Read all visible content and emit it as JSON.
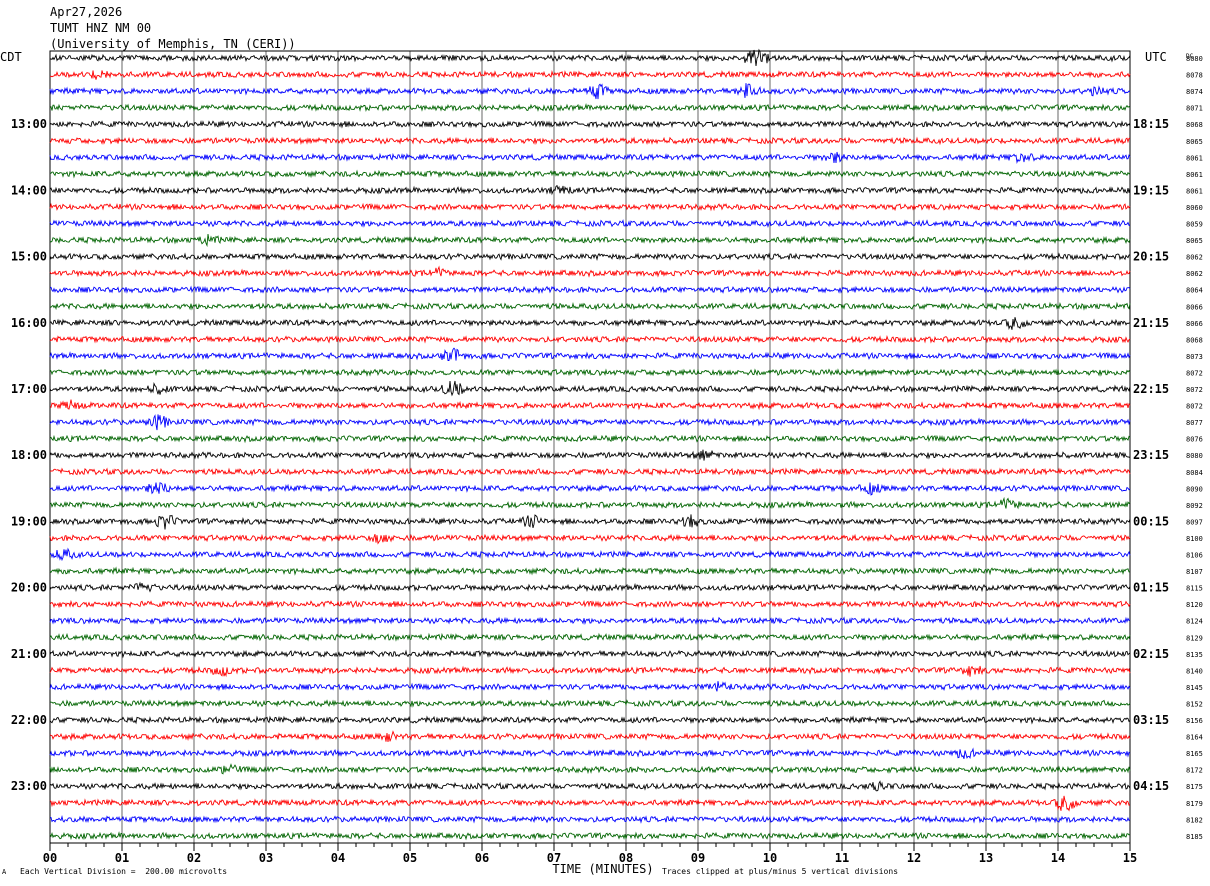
{
  "header": {
    "date": "Apr27,2026",
    "station": "TUMT HNZ NM 00",
    "network": "(University of Memphis, TN (CERI))",
    "left_zone": "CDT",
    "right_zone": "UTC",
    "corner_mark": "DC"
  },
  "footer": {
    "scale_note": "Each Vertical Division =  200.00 microvolts",
    "clip_note": "Traces clipped at plus/minus 5 vertical divisions",
    "corner_glyph": "A"
  },
  "chart_data": {
    "type": "line",
    "title": "TUMT HNZ NM 00",
    "xlabel": "TIME (MINUTES)",
    "xlim": [
      0,
      15
    ],
    "x_ticks": [
      "00",
      "01",
      "02",
      "03",
      "04",
      "05",
      "06",
      "07",
      "08",
      "09",
      "10",
      "11",
      "12",
      "13",
      "14",
      "15"
    ],
    "trace_count": 48,
    "trace_colors": [
      "#000000",
      "#ff0000",
      "#0000ff",
      "#006400"
    ],
    "left_time_labels": [
      {
        "trace": 4,
        "label": "13:00"
      },
      {
        "trace": 8,
        "label": "14:00"
      },
      {
        "trace": 12,
        "label": "15:00"
      },
      {
        "trace": 16,
        "label": "16:00"
      },
      {
        "trace": 20,
        "label": "17:00"
      },
      {
        "trace": 24,
        "label": "18:00"
      },
      {
        "trace": 28,
        "label": "19:00"
      },
      {
        "trace": 32,
        "label": "20:00"
      },
      {
        "trace": 36,
        "label": "21:00"
      },
      {
        "trace": 40,
        "label": "22:00"
      },
      {
        "trace": 44,
        "label": "23:00"
      }
    ],
    "right_time_labels": [
      {
        "trace": 4,
        "label": "18:15"
      },
      {
        "trace": 8,
        "label": "19:15"
      },
      {
        "trace": 12,
        "label": "20:15"
      },
      {
        "trace": 16,
        "label": "21:15"
      },
      {
        "trace": 20,
        "label": "22:15"
      },
      {
        "trace": 24,
        "label": "23:15"
      },
      {
        "trace": 28,
        "label": "00:15"
      },
      {
        "trace": 32,
        "label": "01:15"
      },
      {
        "trace": 36,
        "label": "02:15"
      },
      {
        "trace": 40,
        "label": "03:15"
      },
      {
        "trace": 44,
        "label": "04:15"
      }
    ],
    "dc_offsets": [
      "8080",
      "8078",
      "8074",
      "8071",
      "8068",
      "8065",
      "8061",
      "8061",
      "8061",
      "8060",
      "8059",
      "8065",
      "8062",
      "8062",
      "8064",
      "8066",
      "8066",
      "8068",
      "8073",
      "8072",
      "8072",
      "8072",
      "8077",
      "8076",
      "8080",
      "8084",
      "8090",
      "8092",
      "8097",
      "8100",
      "8106",
      "8107",
      "8115",
      "8120",
      "8124",
      "8129",
      "8135",
      "8140",
      "8145",
      "8152",
      "8156",
      "8164",
      "8165",
      "8172",
      "8175",
      "8179",
      "8182",
      "8185"
    ],
    "events": [
      {
        "trace": 0,
        "minute": 9.8,
        "amp": 4.5
      },
      {
        "trace": 1,
        "minute": 0.7,
        "amp": 1.2
      },
      {
        "trace": 2,
        "minute": 7.6,
        "amp": 1.8
      },
      {
        "trace": 2,
        "minute": 9.7,
        "amp": 2.2
      },
      {
        "trace": 2,
        "minute": 14.5,
        "amp": 1.0
      },
      {
        "trace": 6,
        "minute": 10.9,
        "amp": 1.2
      },
      {
        "trace": 6,
        "minute": 13.5,
        "amp": 1.2
      },
      {
        "trace": 8,
        "minute": 7.1,
        "amp": 1.0
      },
      {
        "trace": 11,
        "minute": 2.2,
        "amp": 1.0
      },
      {
        "trace": 13,
        "minute": 5.4,
        "amp": 1.0
      },
      {
        "trace": 16,
        "minute": 13.4,
        "amp": 1.5
      },
      {
        "trace": 18,
        "minute": 5.6,
        "amp": 2.0
      },
      {
        "trace": 20,
        "minute": 5.6,
        "amp": 2.2
      },
      {
        "trace": 20,
        "minute": 1.5,
        "amp": 1.0
      },
      {
        "trace": 21,
        "minute": 0.3,
        "amp": 1.0
      },
      {
        "trace": 22,
        "minute": 1.5,
        "amp": 1.8
      },
      {
        "trace": 24,
        "minute": 9.1,
        "amp": 1.2
      },
      {
        "trace": 26,
        "minute": 1.5,
        "amp": 1.8
      },
      {
        "trace": 26,
        "minute": 11.4,
        "amp": 1.2
      },
      {
        "trace": 27,
        "minute": 13.3,
        "amp": 1.4
      },
      {
        "trace": 28,
        "minute": 1.6,
        "amp": 1.8
      },
      {
        "trace": 28,
        "minute": 6.7,
        "amp": 1.4
      },
      {
        "trace": 28,
        "minute": 8.9,
        "amp": 1.4
      },
      {
        "trace": 29,
        "minute": 4.6,
        "amp": 1.2
      },
      {
        "trace": 30,
        "minute": 0.2,
        "amp": 1.2
      },
      {
        "trace": 32,
        "minute": 1.3,
        "amp": 1.2
      },
      {
        "trace": 37,
        "minute": 2.4,
        "amp": 1.2
      },
      {
        "trace": 37,
        "minute": 12.8,
        "amp": 1.2
      },
      {
        "trace": 38,
        "minute": 9.3,
        "amp": 1.2
      },
      {
        "trace": 41,
        "minute": 4.7,
        "amp": 1.0
      },
      {
        "trace": 42,
        "minute": 12.7,
        "amp": 1.0
      },
      {
        "trace": 43,
        "minute": 2.5,
        "amp": 1.0
      },
      {
        "trace": 44,
        "minute": 11.5,
        "amp": 1.0
      },
      {
        "trace": 45,
        "minute": 14.1,
        "amp": 2.2
      }
    ]
  }
}
